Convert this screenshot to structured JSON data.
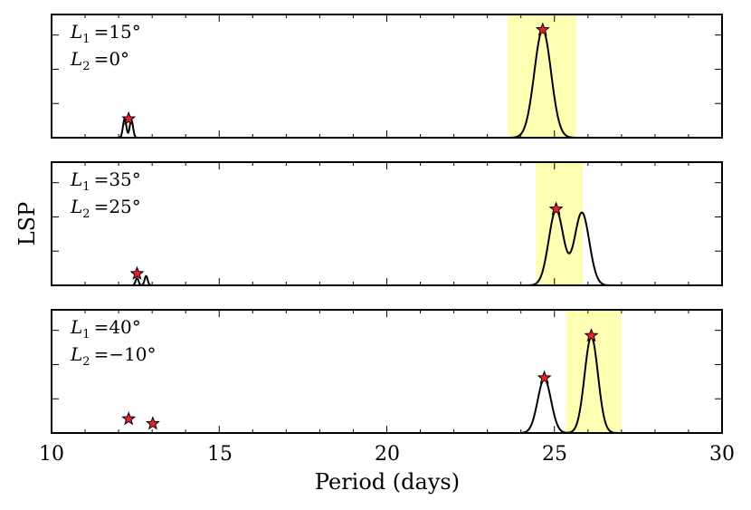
{
  "chart_data": {
    "type": "line",
    "title": "",
    "xlabel": "Period (days)",
    "ylabel": "LSP",
    "xlim": [
      10,
      30
    ],
    "xticks": [
      "10",
      "15",
      "20",
      "25",
      "30"
    ],
    "highlight_color": "#ffffb3",
    "line_color": "#000000",
    "marker_color": "#e8202a",
    "panels": [
      {
        "annotation": {
          "l1_sym": "L",
          "l1_sub": "1",
          "l1_val": "=15°",
          "l2_sym": "L",
          "l2_sub": "2",
          "l2_val": "=0°"
        },
        "band": [
          23.6,
          25.65
        ],
        "ylim": [
          0,
          1.05
        ],
        "peaks": [
          {
            "center": 12.18,
            "height": 0.16,
            "width": 0.05
          },
          {
            "center": 12.38,
            "height": 0.15,
            "width": 0.05
          },
          {
            "center": 24.65,
            "height": 0.92,
            "width": 0.25
          }
        ],
        "markers": [
          {
            "x": 12.3,
            "y": 0.16
          },
          {
            "x": 24.65,
            "y": 0.92
          }
        ]
      },
      {
        "annotation": {
          "l1_sym": "L",
          "l1_sub": "1",
          "l1_val": "=35°",
          "l2_sym": "L",
          "l2_sub": "2",
          "l2_val": "=25°"
        },
        "band": [
          24.45,
          25.85
        ],
        "ylim": [
          0,
          1.05
        ],
        "peaks": [
          {
            "center": 12.55,
            "height": 0.06,
            "width": 0.045
          },
          {
            "center": 12.82,
            "height": 0.08,
            "width": 0.045
          },
          {
            "center": 25.05,
            "height": 0.64,
            "width": 0.22
          },
          {
            "center": 25.82,
            "height": 0.62,
            "width": 0.22
          }
        ],
        "markers": [
          {
            "x": 12.55,
            "y": 0.1
          },
          {
            "x": 25.05,
            "y": 0.65
          }
        ]
      },
      {
        "annotation": {
          "l1_sym": "L",
          "l1_sub": "1",
          "l1_val": "=40°",
          "l2_sym": "L",
          "l2_sub": "2",
          "l2_val": "=−10°"
        },
        "band": [
          25.35,
          27.0
        ],
        "ylim": [
          0,
          1.05
        ],
        "peaks": [
          {
            "center": 24.7,
            "height": 0.46,
            "width": 0.2
          },
          {
            "center": 26.1,
            "height": 0.82,
            "width": 0.2
          }
        ],
        "markers": [
          {
            "x": 12.3,
            "y": 0.12
          },
          {
            "x": 13.02,
            "y": 0.08
          },
          {
            "x": 24.7,
            "y": 0.47
          },
          {
            "x": 26.1,
            "y": 0.83
          }
        ]
      }
    ]
  }
}
